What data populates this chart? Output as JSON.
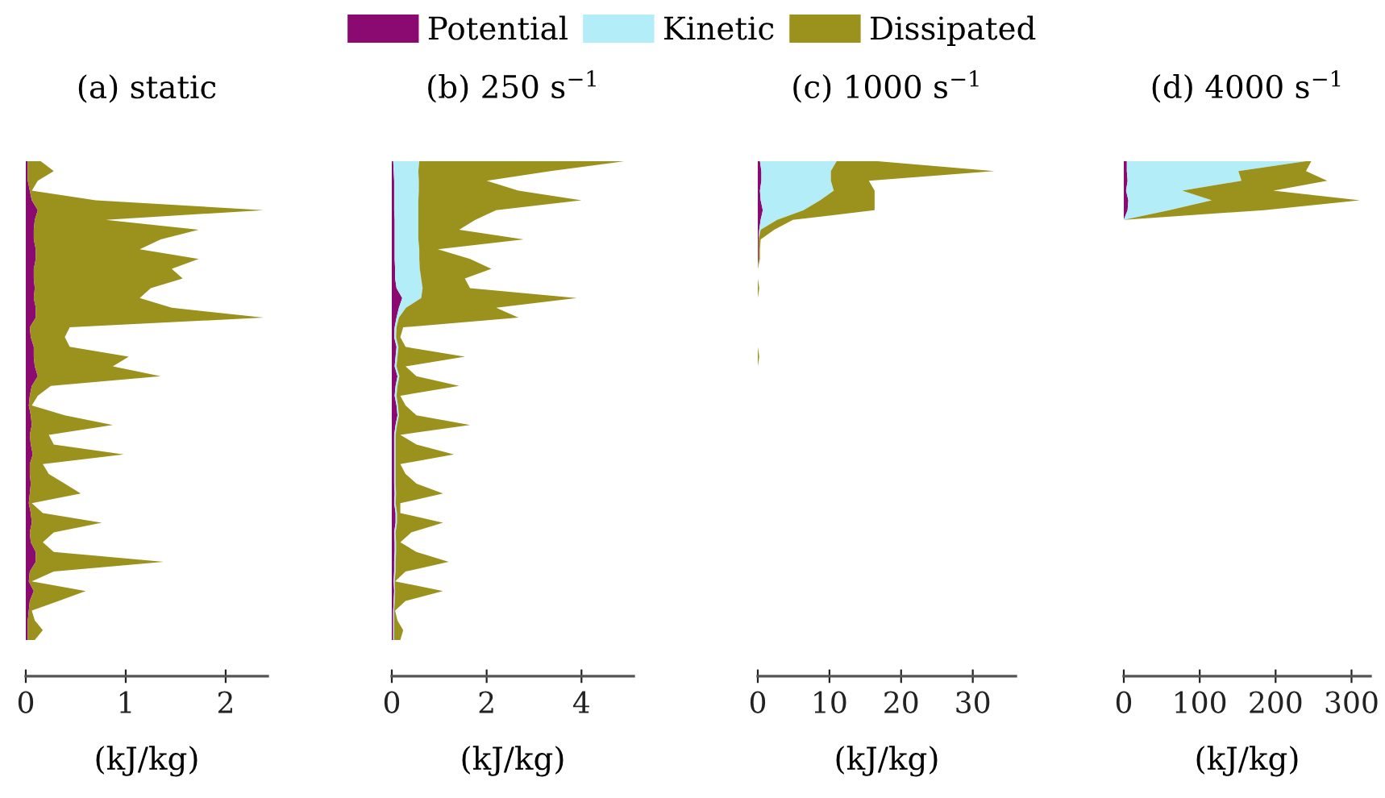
{
  "chart_data": [
    {
      "type": "area",
      "stacked": true,
      "orientation": "horizontal",
      "title": "(a) static",
      "xlabel": "(kJ/kg)",
      "tick_labels": "x",
      "categories": [
        null,
        null,
        null,
        null,
        null,
        null,
        null,
        null,
        null,
        null,
        null,
        null,
        null,
        null,
        null,
        null,
        null,
        null,
        null,
        null,
        null,
        null,
        null,
        null,
        null,
        null,
        null,
        null,
        null,
        null,
        null,
        null,
        null,
        null,
        null,
        null,
        null,
        null,
        null,
        null,
        null,
        null,
        null,
        null,
        null,
        null,
        null,
        null,
        null,
        null
      ],
      "xlim": [
        0,
        2.42
      ],
      "xticks": [
        0,
        1,
        2
      ],
      "series": [
        {
          "color": "#8b0a72",
          "values": [
            0.02,
            0.02,
            0.02,
            0.04,
            0.06,
            0.12,
            0.09,
            0.08,
            0.08,
            0.1,
            0.1,
            0.08,
            0.08,
            0.09,
            0.08,
            0.1,
            0.1,
            0.04,
            0.05,
            0.08,
            0.08,
            0.09,
            0.12,
            0.06,
            0.04,
            0.03,
            0.05,
            0.06,
            0.04,
            0.05,
            0.07,
            0.04,
            0.04,
            0.05,
            0.04,
            0.03,
            0.05,
            0.06,
            0.04,
            0.05,
            0.1,
            0.1,
            0.04,
            0.03,
            0.08,
            0.04,
            0.03,
            0.02,
            0.02,
            0.02
          ]
        },
        {
          "color": "#9a921c",
          "values": [
            0.13,
            0.26,
            0.1,
            0.02,
            0.64,
            2.26,
            0.71,
            1.65,
            1.27,
            1.04,
            1.63,
            1.38,
            1.49,
            1.16,
            1.06,
            1.36,
            2.28,
            0.4,
            0.34,
            0.36,
            0.95,
            0.78,
            1.23,
            0.19,
            0.08,
            0.03,
            0.34,
            0.81,
            0.19,
            0.23,
            0.91,
            0.13,
            0.19,
            0.34,
            0.51,
            0.03,
            0.12,
            0.7,
            0.24,
            0.12,
            0.18,
            1.28,
            0.24,
            0.03,
            0.52,
            0.29,
            0.03,
            0.07,
            0.15,
            0.07
          ]
        }
      ]
    },
    {
      "type": "area",
      "stacked": true,
      "orientation": "horizontal",
      "title": "(b) 250 s$^{−1}$",
      "xlabel": "(kJ/kg)",
      "legend": "top",
      "tick_labels": "x",
      "categories": [
        null,
        null,
        null,
        null,
        null,
        null,
        null,
        null,
        null,
        null,
        null,
        null,
        null,
        null,
        null,
        null,
        null,
        null,
        null,
        null,
        null,
        null,
        null,
        null,
        null,
        null,
        null,
        null,
        null,
        null,
        null,
        null,
        null,
        null,
        null,
        null,
        null,
        null,
        null,
        null,
        null,
        null,
        null,
        null,
        null,
        null,
        null,
        null,
        null,
        null
      ],
      "xlim": [
        0,
        5.1
      ],
      "xticks": [
        0,
        2,
        4
      ],
      "series": [
        {
          "name": "Potential",
          "color": "#8b0a72",
          "values": [
            0.03,
            0.04,
            0.05,
            0.05,
            0.05,
            0.05,
            0.06,
            0.06,
            0.06,
            0.06,
            0.06,
            0.07,
            0.07,
            0.1,
            0.22,
            0.15,
            0.1,
            0.06,
            0.05,
            0.1,
            0.08,
            0.06,
            0.12,
            0.08,
            0.06,
            0.1,
            0.12,
            0.08,
            0.05,
            0.05,
            0.05,
            0.05,
            0.05,
            0.05,
            0.06,
            0.05,
            0.08,
            0.08,
            0.05,
            0.06,
            0.06,
            0.05,
            0.05,
            0.04,
            0.05,
            0.04,
            0.03,
            0.03,
            0.03,
            0.03
          ]
        },
        {
          "name": "Kinetic",
          "color": "#b3eef8",
          "values": [
            0.55,
            0.52,
            0.52,
            0.52,
            0.51,
            0.51,
            0.5,
            0.5,
            0.5,
            0.52,
            0.52,
            0.52,
            0.55,
            0.55,
            0.4,
            0.15,
            0.05,
            0.04,
            0.04,
            0.04,
            0.04,
            0.04,
            0.04,
            0.04,
            0.04,
            0.03,
            0.03,
            0.03,
            0.03,
            0.03,
            0.03,
            0.03,
            0.03,
            0.03,
            0.03,
            0.03,
            0.03,
            0.03,
            0.03,
            0.03,
            0.03,
            0.03,
            0.03,
            0.02,
            0.02,
            0.02,
            0.02,
            0.02,
            0.02,
            0.02
          ]
        },
        {
          "name": "Dissipated",
          "color": "#9a921c",
          "values": [
            4.32,
            2.79,
            1.43,
            2.1,
            3.44,
            1.64,
            1.2,
            0.86,
            2.22,
            0.39,
            1.07,
            1.51,
            0.92,
            1.0,
            3.28,
            1.9,
            2.52,
            0.14,
            0.09,
            0.15,
            1.42,
            0.19,
            0.36,
            1.3,
            0.08,
            0.16,
            0.37,
            1.54,
            0.1,
            0.44,
            1.23,
            0.1,
            0.21,
            0.44,
            0.99,
            0.1,
            0.07,
            0.97,
            0.33,
            0.09,
            0.43,
            1.12,
            0.21,
            0.01,
            1.01,
            0.23,
            0.02,
            0.07,
            0.19,
            0.13
          ]
        }
      ]
    },
    {
      "type": "area",
      "stacked": true,
      "orientation": "horizontal",
      "title": "(c) 1000 s$^{−1}$",
      "xlabel": "(kJ/kg)",
      "tick_labels": "x",
      "categories": [
        null,
        null,
        null,
        null,
        null,
        null,
        null,
        null,
        null,
        null,
        null,
        null,
        null,
        null,
        null,
        null,
        null,
        null,
        null,
        null,
        null,
        null,
        null,
        null,
        null,
        null,
        null,
        null,
        null,
        null,
        null,
        null,
        null,
        null,
        null,
        null,
        null,
        null,
        null,
        null,
        null,
        null,
        null,
        null,
        null,
        null,
        null,
        null,
        null,
        null
      ],
      "xlim": [
        0,
        36
      ],
      "xticks": [
        0,
        10,
        20,
        30
      ],
      "series": [
        {
          "color": "#8b0a72",
          "values": [
            0.3,
            0.5,
            0.5,
            0.3,
            0.4,
            0.7,
            0.4,
            0.2,
            0.1,
            0.1,
            0.1,
            0,
            0,
            0,
            0,
            0,
            0,
            0,
            0,
            0,
            0,
            0,
            0,
            0,
            0,
            0,
            0,
            0,
            0,
            0,
            0,
            0,
            0,
            0,
            0,
            0,
            0,
            0,
            0,
            0,
            0,
            0,
            0,
            0,
            0,
            0,
            0,
            0,
            0,
            0
          ]
        },
        {
          "color": "#b3eef8",
          "values": [
            10.7,
            9.7,
            9.7,
            10.3,
            8.3,
            5.7,
            2.3,
            0.2,
            0,
            0,
            0,
            0,
            0,
            0,
            0,
            0,
            0,
            0,
            0,
            0,
            0,
            0,
            0,
            0,
            0,
            0,
            0,
            0,
            0,
            0,
            0,
            0,
            0,
            0,
            0,
            0,
            0,
            0,
            0,
            0,
            0,
            0,
            0,
            0,
            0,
            0,
            0,
            0,
            0,
            0
          ]
        },
        {
          "color": "#9a921c",
          "values": [
            5.7,
            22.8,
            5.3,
            5.7,
            7.6,
            9.9,
            2.2,
            1.9,
            0.3,
            0.2,
            0.2,
            0,
            0,
            0.2,
            0,
            0,
            0,
            0,
            0,
            0,
            0.2,
            0,
            0,
            0,
            0,
            0,
            0,
            0,
            0,
            0,
            0,
            0,
            0,
            0,
            0,
            0,
            0,
            0,
            0,
            0,
            0,
            0,
            0,
            0,
            0,
            0,
            0,
            0,
            0,
            0
          ]
        }
      ]
    },
    {
      "type": "area",
      "stacked": true,
      "orientation": "horizontal",
      "title": "(d) 4000 s$^{−1}$",
      "xlabel": "(kJ/kg)",
      "tick_labels": "x",
      "categories": [
        null,
        null,
        null,
        null,
        null,
        null,
        null,
        null,
        null,
        null,
        null,
        null,
        null,
        null,
        null,
        null,
        null,
        null,
        null,
        null,
        null,
        null,
        null,
        null,
        null,
        null,
        null,
        null,
        null,
        null,
        null,
        null,
        null,
        null,
        null,
        null,
        null,
        null,
        null,
        null,
        null,
        null,
        null,
        null,
        null,
        null,
        null,
        null,
        null,
        null
      ],
      "xlim": [
        0,
        325
      ],
      "xticks": [
        0,
        100,
        200,
        300
      ],
      "series": [
        {
          "color": "#8b0a72",
          "values": [
            4,
            4,
            5,
            3,
            6,
            5,
            0,
            0,
            0,
            0,
            0,
            0,
            0,
            0,
            0,
            0,
            0,
            0,
            0,
            0,
            0,
            0,
            0,
            0,
            0,
            0,
            0,
            0,
            0,
            0,
            0,
            0,
            0,
            0,
            0,
            0,
            0,
            0,
            0,
            0,
            0,
            0,
            0,
            0,
            0,
            0,
            0,
            0,
            0,
            0
          ]
        },
        {
          "color": "#b3eef8",
          "values": [
            236,
            147,
            150,
            74,
            110,
            55,
            0,
            0,
            0,
            0,
            0,
            0,
            0,
            0,
            0,
            0,
            0,
            0,
            0,
            0,
            0,
            0,
            0,
            0,
            0,
            0,
            0,
            0,
            0,
            0,
            0,
            0,
            0,
            0,
            0,
            0,
            0,
            0,
            0,
            0,
            0,
            0,
            0,
            0,
            0,
            0,
            0,
            0,
            0,
            0
          ]
        },
        {
          "color": "#9a921c",
          "values": [
            7,
            89,
            113,
            120,
            195,
            125,
            0,
            0,
            0,
            0,
            0,
            0,
            0,
            0,
            0,
            0,
            0,
            0,
            0,
            0,
            0,
            0,
            0,
            0,
            0,
            0,
            0,
            0,
            0,
            0,
            0,
            0,
            0,
            0,
            0,
            0,
            0,
            0,
            0,
            0,
            0,
            0,
            0,
            0,
            0,
            0,
            0,
            0,
            0,
            0
          ]
        }
      ]
    }
  ]
}
